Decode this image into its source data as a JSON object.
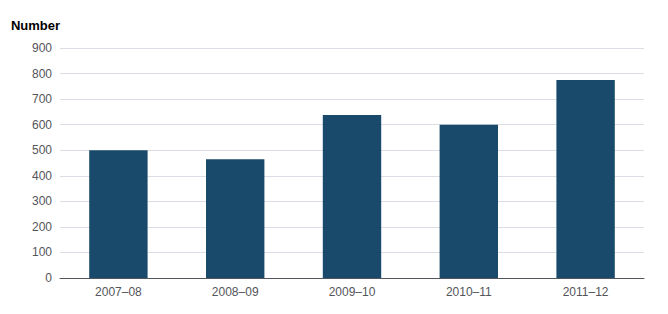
{
  "chart_data": {
    "type": "bar",
    "ylabel": "Number",
    "categories": [
      "2007–08",
      "2008–09",
      "2009–10",
      "2010–11",
      "2011–12"
    ],
    "values": [
      500,
      465,
      638,
      600,
      775
    ],
    "color": "#1a4a6b",
    "ylim": [
      0,
      900
    ],
    "yticks": [
      0,
      100,
      200,
      300,
      400,
      500,
      600,
      700,
      800,
      900
    ],
    "grid": true
  }
}
